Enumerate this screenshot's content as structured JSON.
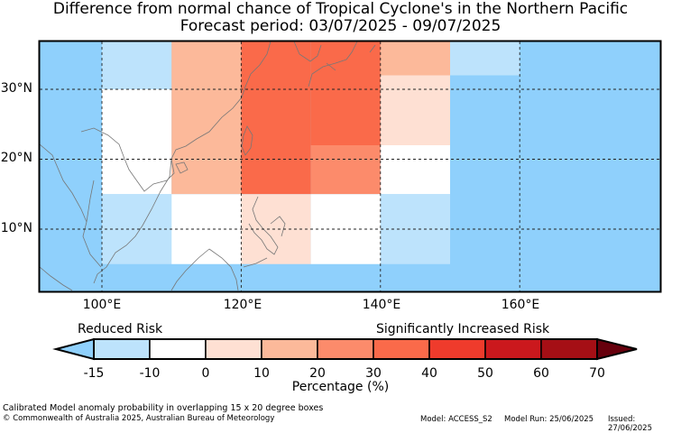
{
  "title": {
    "line1": "Difference from normal chance of Tropical Cyclone's in the Northern Pacific",
    "line2": "Forecast period: 03/07/2025 - 09/07/2025"
  },
  "axes": {
    "lat_labels": [
      "30°N",
      "20°N",
      "10°N"
    ],
    "lon_labels": [
      "100°E",
      "120°E",
      "140°E",
      "160°E"
    ]
  },
  "map_colors": {
    "background": "#8fd0fc",
    "light_blue": "#bde3fc",
    "white": "#ffffff",
    "pale": "#fee0d3",
    "light_salmon": "#fcb99a",
    "salmon": "#fc8b6b",
    "red_orange": "#fa6a4a"
  },
  "grid_cells": [
    {
      "lon": [
        100,
        110
      ],
      "lat": [
        30,
        37
      ],
      "color": "light_blue"
    },
    {
      "lon": [
        100,
        110
      ],
      "lat": [
        15,
        30
      ],
      "color": "white"
    },
    {
      "lon": [
        100,
        110
      ],
      "lat": [
        5,
        15
      ],
      "color": "light_blue"
    },
    {
      "lon": [
        110,
        120
      ],
      "lat": [
        15,
        37
      ],
      "color": "light_salmon"
    },
    {
      "lon": [
        110,
        120
      ],
      "lat": [
        5,
        15
      ],
      "color": "white"
    },
    {
      "lon": [
        120,
        130
      ],
      "lat": [
        15,
        37
      ],
      "color": "red_orange"
    },
    {
      "lon": [
        120,
        130
      ],
      "lat": [
        5,
        15
      ],
      "color": "pale"
    },
    {
      "lon": [
        130,
        140
      ],
      "lat": [
        22,
        37
      ],
      "color": "red_orange"
    },
    {
      "lon": [
        130,
        140
      ],
      "lat": [
        15,
        22
      ],
      "color": "salmon"
    },
    {
      "lon": [
        130,
        140
      ],
      "lat": [
        5,
        15
      ],
      "color": "white"
    },
    {
      "lon": [
        140,
        150
      ],
      "lat": [
        32,
        37
      ],
      "color": "light_salmon"
    },
    {
      "lon": [
        140,
        150
      ],
      "lat": [
        22,
        32
      ],
      "color": "pale"
    },
    {
      "lon": [
        140,
        150
      ],
      "lat": [
        15,
        22
      ],
      "color": "white"
    },
    {
      "lon": [
        140,
        150
      ],
      "lat": [
        5,
        15
      ],
      "color": "light_blue"
    },
    {
      "lon": [
        150,
        160
      ],
      "lat": [
        32,
        37
      ],
      "color": "light_blue"
    }
  ],
  "colorbar": {
    "left_label": "Reduced Risk",
    "right_label": "Significantly Increased Risk",
    "ticks": [
      "-15",
      "-10",
      "0",
      "10",
      "20",
      "30",
      "40",
      "50",
      "60",
      "70"
    ],
    "colors": [
      "#bde3fc",
      "#ffffff",
      "#fee0d3",
      "#fcb99a",
      "#fc8b6b",
      "#fa6a4a",
      "#ef3b2c",
      "#cb181d",
      "#a50f15"
    ],
    "under_color": "#8fd0fc",
    "over_color": "#67000d",
    "title": "Percentage (%)"
  },
  "footer": {
    "description": "Calibrated Model anomaly probability in overlapping 15 x 20 degree boxes",
    "copyright": "© Commonwealth of Australia 2025, Australian Bureau of Meteorology",
    "model": "Model: ACCESS_S2",
    "model_run": "Model Run: 25/06/2025",
    "issued": "Issued: 27/06/2025"
  }
}
